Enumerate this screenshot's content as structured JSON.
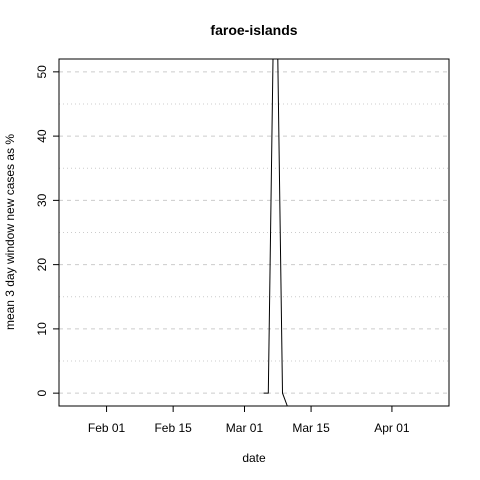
{
  "chart_data": {
    "type": "line",
    "title": "faroe-islands",
    "xlabel": "date",
    "ylabel": "mean  3  day window new cases as %",
    "x_start": "2020-01-22",
    "x_end": "2020-04-13",
    "x_tick_labels": [
      {
        "date": "2020-02-01",
        "label": "Feb 01"
      },
      {
        "date": "2020-02-15",
        "label": "Feb 15"
      },
      {
        "date": "2020-03-01",
        "label": "Mar 01"
      },
      {
        "date": "2020-03-15",
        "label": "Mar 15"
      },
      {
        "date": "2020-04-01",
        "label": "Apr 01"
      }
    ],
    "ylim": [
      -2,
      52
    ],
    "y_ticks": [
      0,
      10,
      20,
      30,
      40,
      50
    ],
    "y_minor_grid": [
      5,
      15,
      25,
      35,
      45
    ],
    "grid": true,
    "series": [
      {
        "x": [
          "2020-03-05",
          "2020-03-06",
          "2020-03-07",
          "2020-03-08",
          "2020-03-09",
          "2020-03-10"
        ],
        "y": [
          0,
          0,
          52,
          52,
          0,
          -2
        ]
      }
    ]
  }
}
